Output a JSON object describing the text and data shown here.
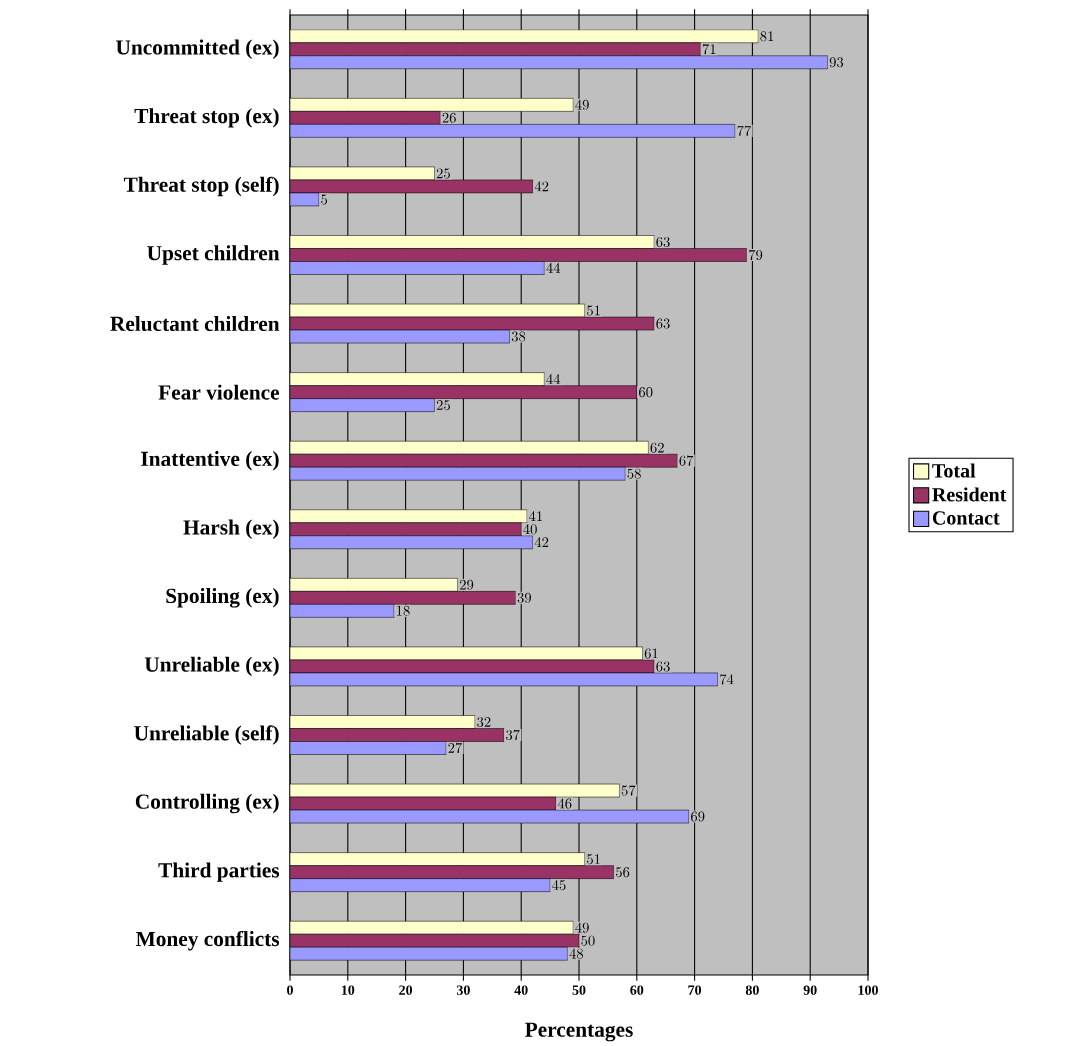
{
  "chart_data": {
    "type": "bar",
    "orientation": "horizontal",
    "xlabel": "Percentages",
    "categories": [
      "Uncommitted (ex)",
      "Threat stop (ex)",
      "Threat stop (self)",
      "Upset children",
      "Reluctant children",
      "Fear violence",
      "Inattentive (ex)",
      "Harsh (ex)",
      "Spoiling (ex)",
      "Unreliable (ex)",
      "Unreliable (self)",
      "Controlling (ex)",
      "Third parties",
      "Money conflicts"
    ],
    "series": [
      {
        "name": "Total",
        "color": "#ffffcc",
        "values": [
          81,
          49,
          25,
          63,
          51,
          44,
          62,
          41,
          29,
          61,
          32,
          57,
          51,
          49
        ]
      },
      {
        "name": "Resident",
        "color": "#993366",
        "values": [
          71,
          26,
          42,
          79,
          63,
          60,
          67,
          40,
          39,
          63,
          37,
          46,
          56,
          50
        ]
      },
      {
        "name": "Contact",
        "color": "#9999ff",
        "values": [
          93,
          77,
          5,
          44,
          38,
          25,
          58,
          42,
          18,
          74,
          27,
          69,
          45,
          48
        ]
      }
    ],
    "xlim": [
      0,
      100
    ],
    "xticks": [
      0,
      10,
      20,
      30,
      40,
      50,
      60,
      70,
      80,
      90,
      100
    ],
    "grid": "x",
    "legend": "right",
    "data_labels": true
  }
}
